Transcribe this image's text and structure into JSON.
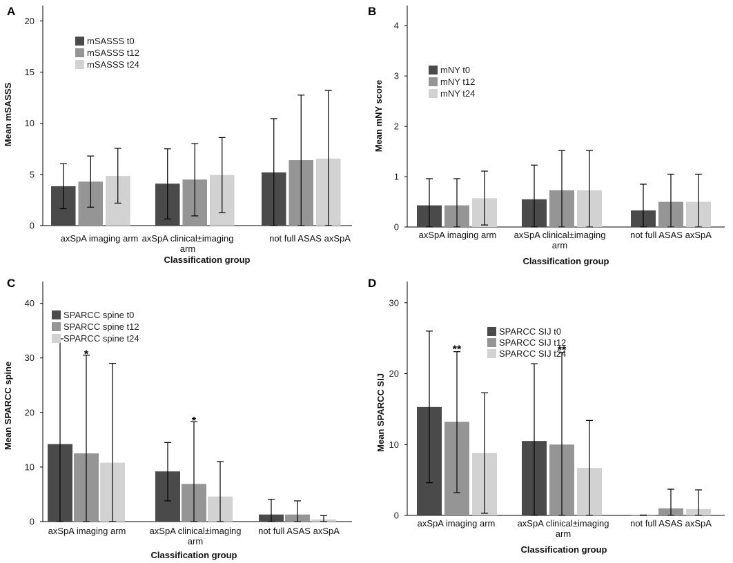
{
  "colors": {
    "t0": "#4a4a4a",
    "t12": "#959595",
    "t24": "#d2d2d2"
  },
  "chart_data": [
    {
      "panel": "A",
      "type": "bar",
      "categories": [
        "axSpA imaging arm",
        "axSpA clinical±imaging arm",
        "not full ASAS axSpA"
      ],
      "series": [
        {
          "name": "mSASSS t0",
          "values": [
            3.85,
            4.1,
            5.2
          ],
          "err_low": [
            1.65,
            0.65,
            0.0
          ],
          "err_high": [
            6.05,
            7.5,
            10.45
          ]
        },
        {
          "name": "mSASSS t12",
          "values": [
            4.3,
            4.5,
            6.4
          ],
          "err_low": [
            1.8,
            0.95,
            0.0
          ],
          "err_high": [
            6.8,
            8.0,
            12.75
          ]
        },
        {
          "name": "mSASSS t24",
          "values": [
            4.85,
            4.95,
            6.55
          ],
          "err_low": [
            2.2,
            1.25,
            0.0
          ],
          "err_high": [
            7.55,
            8.6,
            13.2
          ]
        }
      ],
      "annotations": [],
      "xlabel": "Classification group",
      "ylabel": "Mean mSASSS",
      "ylim": [
        0,
        21.5
      ],
      "yticks": [
        0,
        5,
        10,
        15,
        20
      ],
      "legend_position": "top-left"
    },
    {
      "panel": "B",
      "type": "bar",
      "categories": [
        "axSpA imaging arm",
        "axSpA clinical±imaging arm",
        "not full ASAS axSpA"
      ],
      "series": [
        {
          "name": "mNY t0",
          "values": [
            0.43,
            0.55,
            0.33
          ],
          "err_low": [
            0.0,
            0.0,
            0.0
          ],
          "err_high": [
            0.96,
            1.23,
            0.85
          ]
        },
        {
          "name": "mNY t12",
          "values": [
            0.43,
            0.73,
            0.5
          ],
          "err_low": [
            0.0,
            0.0,
            0.0
          ],
          "err_high": [
            0.96,
            1.52,
            1.05
          ]
        },
        {
          "name": "mNY t24",
          "values": [
            0.57,
            0.73,
            0.5
          ],
          "err_low": [
            0.04,
            0.0,
            0.0
          ],
          "err_high": [
            1.11,
            1.52,
            1.05
          ]
        }
      ],
      "annotations": [],
      "xlabel": "Classification group",
      "ylabel": "Mean mNY score",
      "ylim": [
        0,
        4.4
      ],
      "yticks": [
        0,
        1,
        2,
        3,
        4
      ],
      "legend_position": "top-left"
    },
    {
      "panel": "C",
      "type": "bar",
      "categories": [
        "axSpA imaging arm",
        "axSpA clinical±imaging arm",
        "not full ASAS axSpA"
      ],
      "series": [
        {
          "name": "SPARCC spine t0",
          "values": [
            14.2,
            9.2,
            1.3
          ],
          "err_low": [
            0.0,
            3.8,
            0.0
          ],
          "err_high": [
            33.5,
            14.5,
            4.1
          ]
        },
        {
          "name": "SPARCC spine t12",
          "values": [
            12.5,
            6.9,
            1.3
          ],
          "err_low": [
            0.0,
            0.0,
            0.0
          ],
          "err_high": [
            30.5,
            18.3,
            3.8
          ]
        },
        {
          "name": "SPARCC spine t24",
          "values": [
            10.8,
            4.6,
            0.4
          ],
          "err_low": [
            0.0,
            0.0,
            0.0
          ],
          "err_high": [
            29.0,
            11.0,
            1.1
          ]
        }
      ],
      "annotations": [
        {
          "text": "*",
          "category": 0,
          "series": 1,
          "value": 31.3
        },
        {
          "text": "*",
          "category": 1,
          "series": 1,
          "value": 19.1
        }
      ],
      "xlabel": "Classification group",
      "ylabel": "Mean SPARCC spine",
      "ylim": [
        0,
        44
      ],
      "yticks": [
        0,
        10,
        20,
        30,
        40
      ],
      "legend_position": "top-left"
    },
    {
      "panel": "D",
      "type": "bar",
      "categories": [
        "axSpA imaging arm",
        "axSpA clinical±imaging arm",
        "not full ASAS axSpA"
      ],
      "series": [
        {
          "name": "SPARCC SIJ t0",
          "values": [
            15.3,
            10.5,
            0.05
          ],
          "err_low": [
            4.6,
            0.0,
            0.0
          ],
          "err_high": [
            26.0,
            21.4,
            0.05
          ]
        },
        {
          "name": "SPARCC SIJ t12",
          "values": [
            13.2,
            10.0,
            1.0
          ],
          "err_low": [
            3.2,
            0.0,
            0.0
          ],
          "err_high": [
            23.1,
            23.0,
            3.7
          ]
        },
        {
          "name": "SPARCC SIJ t24",
          "values": [
            8.8,
            6.7,
            0.9
          ],
          "err_low": [
            0.3,
            0.0,
            0.0
          ],
          "err_high": [
            17.3,
            13.4,
            3.6
          ]
        }
      ],
      "annotations": [
        {
          "text": "**",
          "category": 0,
          "series": 1,
          "value": 23.9
        },
        {
          "text": "**",
          "category": 1,
          "series": 1,
          "value": 23.8
        }
      ],
      "xlabel": "Classification group",
      "ylabel": "Mean SPARCC SIJ",
      "ylim": [
        0,
        33
      ],
      "yticks": [
        0,
        10,
        20,
        30
      ],
      "legend_position": "top-left"
    }
  ]
}
